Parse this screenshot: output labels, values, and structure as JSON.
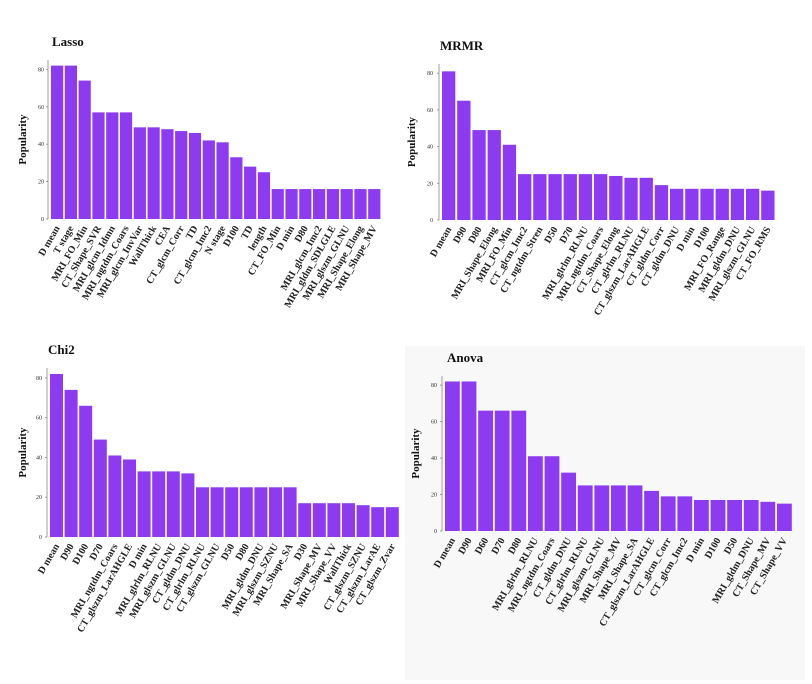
{
  "chart_data": [
    {
      "type": "bar",
      "title": "Lasso",
      "ylabel": "Popularity",
      "xlabel": "",
      "ylim": [
        0,
        85
      ],
      "yticks": [
        0,
        20,
        40,
        60,
        80
      ],
      "color": "#8c3bf0",
      "categories": [
        "D mean",
        "T stage",
        "MRI_FO_Min",
        "CT_Shape_SVR",
        "MRI_glcm_Idmn",
        "MRI_ngtdm_Coars",
        "MRI_glcm_InvVar",
        "WallThick",
        "CEA",
        "CT_glcm_Corr",
        "TD",
        "CT_glcm_Imc2",
        "N stage",
        "D100",
        "TD",
        "length",
        "CT_FO_Min",
        "D min",
        "D80",
        "MRI_glcm_Imc2",
        "MRI_gldm_SDLGLE",
        "MRI_glszm_GLNU",
        "MRI_Shape_Elong",
        "MRI_Shape_MV"
      ],
      "values": [
        82,
        82,
        74,
        57,
        57,
        57,
        49,
        49,
        48,
        47,
        46,
        42,
        41,
        33,
        28,
        25,
        16,
        16,
        16,
        16,
        16,
        16,
        16,
        16
      ]
    },
    {
      "type": "bar",
      "title": "MRMR",
      "ylabel": "Popularity",
      "xlabel": "",
      "ylim": [
        0,
        85
      ],
      "yticks": [
        0,
        20,
        40,
        60,
        80
      ],
      "color": "#8c3bf0",
      "categories": [
        "D mean",
        "D90",
        "D80",
        "MRI_Shape_Elong",
        "MRI_FO_Min",
        "CT_glcm_Imc2",
        "CT_ngtdm_Stren",
        "D50",
        "D70",
        "MRI_glrlm_RLNU",
        "MRI_ngtdm_Coars",
        "CT_Shape_Elong",
        "CT_glrlm_RLNU",
        "CT_glszm_LarAHGLE",
        "CT_gldm_Corr",
        "CT_gldm_DNU",
        "D min",
        "D100",
        "MRI_FO_Range",
        "MRI_gldm_DNU",
        "MRI_glszm_GLNU",
        "CT_FO_RMS"
      ],
      "values": [
        81,
        65,
        49,
        49,
        41,
        25,
        25,
        25,
        25,
        25,
        25,
        24,
        23,
        23,
        19,
        17,
        17,
        17,
        17,
        17,
        17,
        16
      ]
    },
    {
      "type": "bar",
      "title": "Chi2",
      "ylabel": "Popularity",
      "xlabel": "",
      "ylim": [
        0,
        85
      ],
      "yticks": [
        0,
        20,
        40,
        60,
        80
      ],
      "color": "#8c3bf0",
      "categories": [
        "D mean",
        "D90",
        "D100",
        "D70",
        "MRI_ngtdm_Coars",
        "CT_glszm_LarAHGLE",
        "D min",
        "MRI_glrlm_RLNU",
        "MRI_glszm_GLNU",
        "CT_gldm_DNU",
        "CT_glrlm_RLNU",
        "CT_glszm_GLNU",
        "D50",
        "D80",
        "MRI_gldm_DNU",
        "MRI_glszm_SZNU",
        "MRI_Shape_SA",
        "D30",
        "MRI_Shape_MV",
        "MRI_Shape_VV",
        "WallThick",
        "CT_glszm_SZNU",
        "CT_glszm_LarAE",
        "CT_glszm_Zvar"
      ],
      "values": [
        82,
        74,
        66,
        49,
        41,
        39,
        33,
        33,
        33,
        32,
        25,
        25,
        25,
        25,
        25,
        25,
        25,
        17,
        17,
        17,
        17,
        16,
        15,
        15
      ]
    },
    {
      "type": "bar",
      "title": "Anova",
      "ylabel": "Popularity",
      "xlabel": "",
      "ylim": [
        0,
        85
      ],
      "yticks": [
        0,
        20,
        40,
        60,
        80
      ],
      "color": "#8c3bf0",
      "categories": [
        "D mean",
        "D90",
        "D60",
        "D70",
        "D80",
        "MRI_glrlm_RLNU",
        "MRI_ngtdm_Coars",
        "CT_gldm_DNU",
        "CT_glrlm_RLNU",
        "MRI_glszm_GLNU",
        "MRI_Shape_MV",
        "MRI_Shape_SA",
        "CT_glszm_LarAHGLE",
        "CT_glcm_Corr",
        "CT_glcm_Imc2",
        "D min",
        "D100",
        "D50",
        "MRI_gldm_DNU",
        "CT_Shape_MV",
        "CT_Shape_VV"
      ],
      "values": [
        82,
        82,
        66,
        66,
        66,
        41,
        41,
        32,
        25,
        25,
        25,
        25,
        22,
        19,
        19,
        17,
        17,
        17,
        17,
        16,
        15
      ]
    }
  ]
}
